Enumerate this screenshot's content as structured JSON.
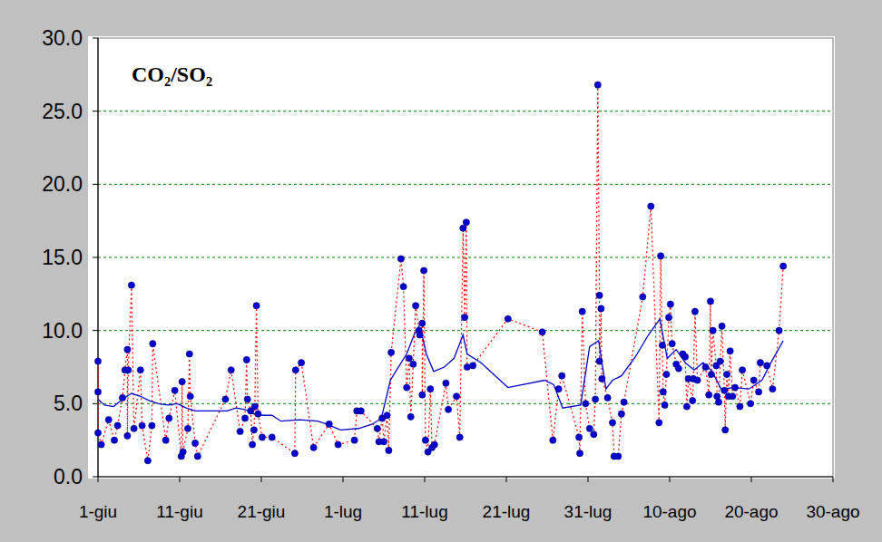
{
  "chart_data": {
    "type": "line",
    "title": "CO₂/SO₂",
    "xlim": [
      0,
      90
    ],
    "xticks": [
      {
        "value": 0,
        "label": "1-giu"
      },
      {
        "value": 10,
        "label": "11-giu"
      },
      {
        "value": 20,
        "label": "21-giu"
      },
      {
        "value": 30,
        "label": "1-lug"
      },
      {
        "value": 40,
        "label": "11-lug"
      },
      {
        "value": 50,
        "label": "21-lug"
      },
      {
        "value": 60,
        "label": "31-lug"
      },
      {
        "value": 70,
        "label": "10-ago"
      },
      {
        "value": 80,
        "label": "20-ago"
      },
      {
        "value": 90,
        "label": "30-ago"
      }
    ],
    "ylim": [
      0,
      30
    ],
    "yticks": [
      {
        "value": 0,
        "label": "0.0"
      },
      {
        "value": 5,
        "label": "5.0"
      },
      {
        "value": 10,
        "label": "10.0"
      },
      {
        "value": 15,
        "label": "15.0"
      },
      {
        "value": 20,
        "label": "20.0"
      },
      {
        "value": 25,
        "label": "25.0"
      },
      {
        "value": 30,
        "label": "30.0"
      }
    ],
    "grid": true,
    "series": [
      {
        "color": "#ff0000",
        "marker": "circle",
        "line_style": "dotted",
        "x": [
          0,
          0,
          0,
          0.4,
          1.3,
          2.0,
          2.4,
          3.0,
          3.3,
          3.6,
          3.6,
          3.7,
          4.1,
          4.4,
          5.2,
          5.4,
          6.1,
          6.6,
          6.7,
          8.3,
          8.7,
          9.4,
          10.2,
          10.3,
          10.4,
          11.0,
          11.2,
          11.3,
          11.9,
          12.2,
          15.6,
          16.3,
          17.4,
          18.0,
          18.2,
          18.3,
          18.7,
          18.9,
          19.1,
          19.2,
          19.4,
          19.6,
          20.1,
          21.3,
          24.1,
          24.2,
          24.9,
          26.4,
          28.3,
          29.4,
          31.4,
          31.7,
          32.2,
          34.2,
          34.4,
          34.8,
          35.0,
          35.4,
          35.6,
          35.9,
          37.1,
          37.4,
          37.8,
          38.1,
          38.3,
          38.6,
          38.9,
          39.3,
          39.4,
          39.7,
          39.7,
          39.9,
          40.1,
          40.4,
          40.7,
          40.9,
          41.2,
          42.6,
          42.9,
          43.9,
          44.3,
          44.7,
          44.9,
          45.1,
          45.2,
          45.9,
          50.2,
          54.4,
          55.7,
          56.4,
          56.8,
          58.9,
          59.0,
          59.3,
          59.7,
          60.2,
          60.7,
          60.9,
          61.2,
          61.4,
          61.4,
          61.6,
          61.7,
          62.4,
          63.0,
          63.2,
          63.7,
          64.1,
          64.4,
          66.7,
          67.7,
          68.7,
          68.9,
          69.1,
          69.2,
          69.4,
          69.6,
          69.9,
          70.1,
          70.3,
          70.8,
          71.1,
          71.6,
          71.9,
          72.1,
          72.3,
          72.8,
          72.9,
          73.1,
          73.4,
          74.4,
          74.8,
          75.0,
          75.1,
          75.3,
          75.7,
          75.8,
          76.0,
          76.2,
          76.4,
          76.7,
          76.8,
          77.0,
          77.2,
          77.4,
          77.7,
          78.0,
          78.6,
          78.9,
          79.9,
          80.3,
          80.9,
          81.1,
          81.9,
          82.6,
          83.4,
          83.9
        ],
        "values": [
          5.8,
          7.9,
          3.0,
          2.2,
          3.9,
          2.5,
          3.5,
          5.4,
          7.3,
          8.7,
          2.8,
          7.3,
          13.1,
          3.3,
          7.3,
          3.5,
          1.1,
          3.5,
          9.1,
          2.5,
          4.0,
          5.9,
          1.4,
          6.5,
          1.7,
          3.3,
          8.4,
          5.5,
          2.3,
          1.4,
          5.3,
          7.3,
          3.1,
          4.0,
          8.0,
          5.3,
          4.5,
          2.2,
          3.2,
          4.8,
          11.7,
          4.3,
          2.7,
          2.7,
          1.6,
          7.3,
          7.8,
          2.0,
          3.6,
          2.2,
          2.5,
          4.5,
          4.5,
          3.3,
          2.4,
          4.0,
          2.4,
          4.2,
          1.8,
          8.5,
          14.9,
          13.0,
          6.1,
          8.1,
          4.1,
          7.7,
          11.7,
          10.0,
          9.7,
          10.5,
          5.6,
          14.1,
          2.5,
          1.7,
          6.0,
          2.0,
          2.2,
          6.4,
          4.6,
          5.5,
          2.7,
          17.0,
          10.9,
          17.4,
          7.5,
          7.6,
          10.8,
          9.9,
          2.5,
          6.0,
          6.9,
          2.7,
          1.6,
          11.3,
          5.0,
          3.3,
          2.9,
          5.3,
          26.8,
          12.4,
          7.9,
          11.5,
          6.7,
          5.4,
          3.7,
          1.4,
          1.4,
          4.3,
          5.1,
          12.3,
          18.5,
          3.7,
          15.1,
          9.0,
          5.8,
          4.9,
          7.0,
          10.9,
          11.8,
          9.1,
          7.7,
          7.4,
          8.4,
          8.2,
          4.8,
          6.7,
          5.2,
          6.7,
          11.3,
          6.6,
          7.5,
          5.6,
          12.0,
          7.0,
          10.0,
          7.6,
          5.5,
          5.1,
          7.9,
          10.3,
          5.9,
          3.2,
          7.0,
          5.5,
          8.6,
          5.5,
          6.1,
          4.8,
          7.3,
          5.0,
          6.6,
          5.8,
          7.8,
          7.6,
          6.0,
          10.0,
          14.4
        ]
      },
      {
        "color": "#0000cc",
        "marker": "none",
        "line_style": "solid",
        "x": [
          0,
          0.8,
          1.9,
          3.0,
          4.1,
          5.2,
          6.3,
          7.4,
          8.6,
          9.7,
          10.8,
          11.9,
          13.6,
          15.8,
          16.9,
          18.0,
          19.1,
          20.2,
          21.3,
          22.4,
          24.7,
          26.9,
          28.0,
          29.7,
          31.9,
          33.6,
          34.7,
          35.8,
          36.9,
          37.8,
          38.7,
          39.3,
          39.8,
          40.2,
          41.1,
          42.4,
          43.6,
          44.7,
          45.2,
          46.9,
          50.2,
          54.7,
          55.8,
          56.9,
          59.1,
          60.2,
          61.3,
          62.2,
          63.0,
          64.1,
          65.8,
          67.4,
          68.8,
          69.7,
          70.8,
          71.9,
          73.0,
          74.1,
          75.2,
          76.3,
          78.0,
          79.7,
          81.3,
          82.4,
          83.9
        ],
        "values": [
          5.3,
          4.9,
          4.8,
          5.3,
          5.7,
          5.5,
          5.2,
          5.0,
          4.9,
          5.0,
          4.7,
          4.5,
          4.5,
          4.5,
          4.7,
          4.6,
          4.3,
          4.2,
          4.2,
          3.8,
          3.9,
          3.8,
          3.6,
          3.2,
          3.3,
          3.6,
          4.0,
          6.6,
          7.6,
          8.4,
          9.7,
          10.3,
          9.4,
          8.4,
          7.2,
          7.5,
          8.1,
          9.7,
          8.4,
          7.8,
          6.1,
          6.6,
          6.3,
          4.7,
          4.9,
          8.9,
          9.3,
          6.0,
          6.6,
          6.9,
          8.2,
          9.7,
          10.8,
          8.1,
          8.7,
          7.8,
          7.3,
          7.8,
          7.2,
          6.0,
          6.1,
          6.0,
          6.6,
          7.8,
          9.3
        ]
      }
    ]
  }
}
